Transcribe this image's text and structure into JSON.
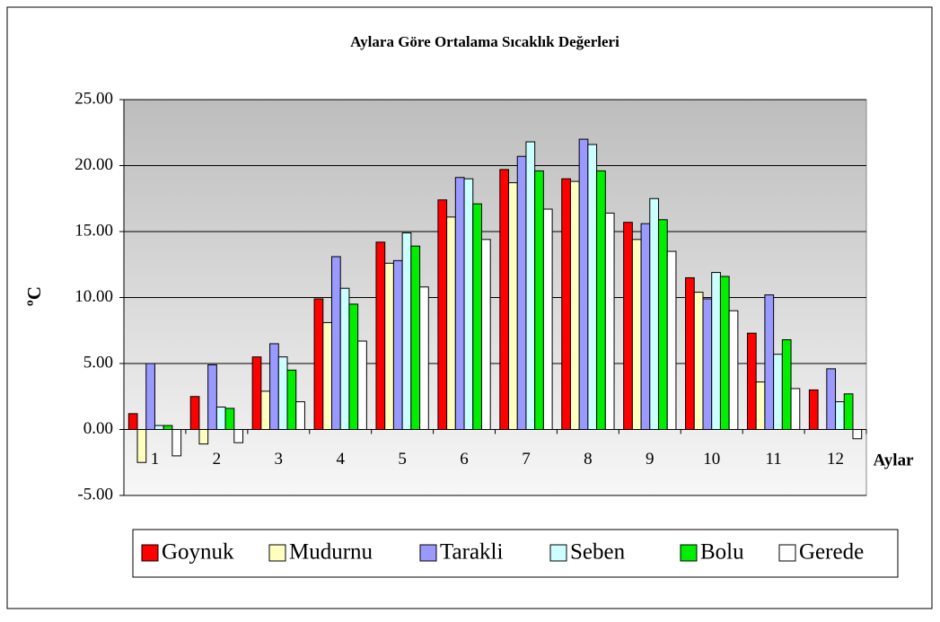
{
  "chart_data": {
    "type": "bar",
    "title": "Aylara Göre Ortalama Sıcaklık Değerleri",
    "y_label": "ºC",
    "x_label": "Aylar",
    "categories": [
      "1",
      "2",
      "3",
      "4",
      "5",
      "6",
      "7",
      "8",
      "9",
      "10",
      "11",
      "12"
    ],
    "series": [
      {
        "name": "Goynuk",
        "color": "#ff0000",
        "values": [
          1.2,
          2.5,
          5.5,
          9.9,
          14.2,
          17.4,
          19.7,
          19.0,
          15.7,
          11.5,
          7.3,
          3.0
        ]
      },
      {
        "name": "Mudurnu",
        "color": "#ffffc0",
        "values": [
          -2.5,
          -1.1,
          2.9,
          8.1,
          12.6,
          16.1,
          18.7,
          18.8,
          14.4,
          10.4,
          3.6,
          null
        ]
      },
      {
        "name": "Tarakli",
        "color": "#9999ff",
        "values": [
          5.0,
          4.9,
          6.5,
          13.1,
          12.8,
          19.1,
          20.7,
          22.0,
          15.6,
          9.9,
          10.2,
          4.6
        ]
      },
      {
        "name": "Seben",
        "color": "#ccffff",
        "values": [
          0.3,
          1.7,
          5.5,
          10.7,
          14.9,
          19.0,
          21.8,
          21.6,
          17.5,
          11.9,
          5.7,
          2.1
        ]
      },
      {
        "name": "Bolu",
        "color": "#00ee00",
        "values": [
          0.3,
          1.6,
          4.5,
          9.5,
          13.9,
          17.1,
          19.6,
          19.6,
          15.9,
          11.6,
          6.8,
          2.7
        ]
      },
      {
        "name": "Gerede",
        "color": "#ffffff",
        "values": [
          -2.0,
          -1.0,
          2.1,
          6.7,
          10.8,
          14.4,
          16.7,
          16.4,
          13.5,
          9.0,
          3.1,
          -0.7
        ]
      }
    ],
    "ylim": [
      -5,
      25
    ],
    "yticks": [
      {
        "value": -5,
        "label": "-5.00"
      },
      {
        "value": 0,
        "label": "0.00"
      },
      {
        "value": 5,
        "label": "5.00"
      },
      {
        "value": 10,
        "label": "10.00"
      },
      {
        "value": 15,
        "label": "15.00"
      },
      {
        "value": 20,
        "label": "20.00"
      },
      {
        "value": 25,
        "label": "25.00"
      }
    ],
    "grid": true,
    "legend": "bottom"
  }
}
